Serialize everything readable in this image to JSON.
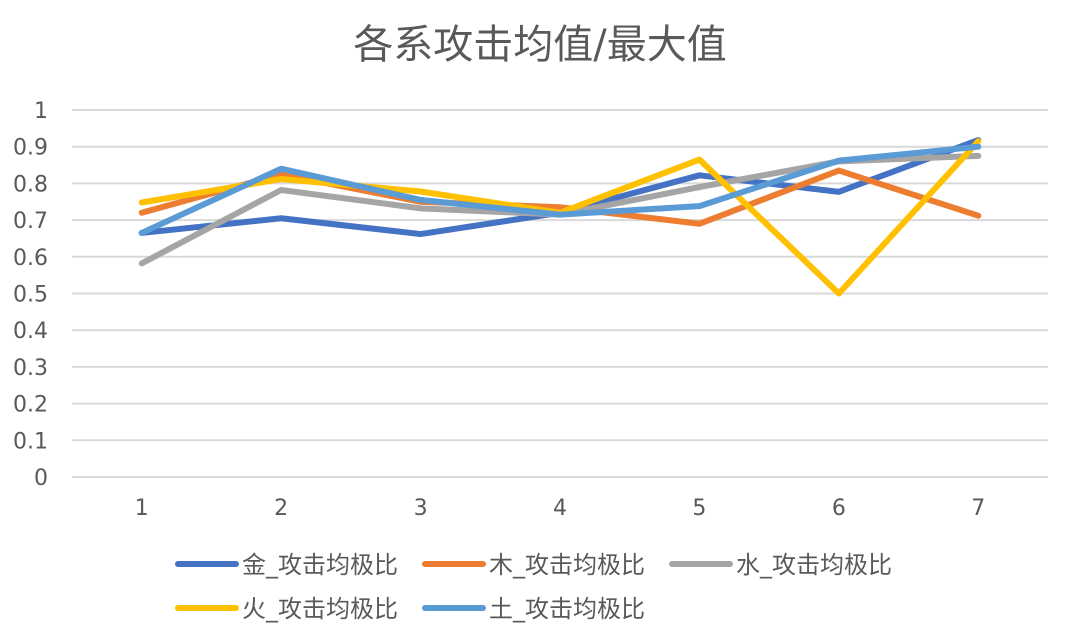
{
  "chart_data": {
    "type": "line",
    "title": "各系攻击均值/最大值",
    "xlabel": "",
    "ylabel": "",
    "categories": [
      "1",
      "2",
      "3",
      "4",
      "5",
      "6",
      "7"
    ],
    "y_ticks": [
      "0",
      "0.1",
      "0.2",
      "0.3",
      "0.4",
      "0.5",
      "0.6",
      "0.7",
      "0.8",
      "0.9",
      "1"
    ],
    "ylim": [
      0,
      1
    ],
    "grid": true,
    "legend_position": "bottom",
    "series": [
      {
        "name": "金_攻击均极比",
        "color": "#4472c4",
        "values": [
          0.665,
          0.705,
          0.662,
          0.72,
          0.822,
          0.777,
          0.918
        ]
      },
      {
        "name": "木_攻击均极比",
        "color": "#ed7d31",
        "values": [
          0.72,
          0.825,
          0.75,
          0.735,
          0.69,
          0.835,
          0.712
        ]
      },
      {
        "name": "水_攻击均极比",
        "color": "#a5a5a5",
        "values": [
          0.582,
          0.782,
          0.732,
          0.715,
          0.79,
          0.86,
          0.875
        ]
      },
      {
        "name": "火_攻击均极比",
        "color": "#ffc000",
        "values": [
          0.748,
          0.812,
          0.778,
          0.72,
          0.865,
          0.5,
          0.915
        ]
      },
      {
        "name": "土_攻击均极比",
        "color": "#5b9bd5",
        "values": [
          0.665,
          0.84,
          0.755,
          0.715,
          0.738,
          0.862,
          0.9
        ]
      }
    ]
  }
}
